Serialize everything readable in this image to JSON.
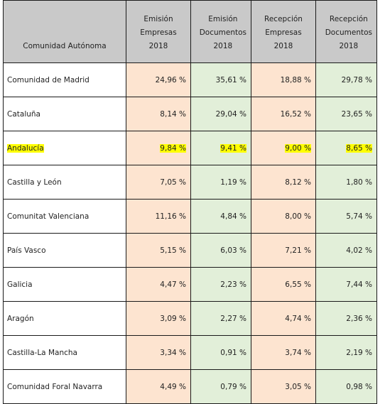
{
  "table": {
    "headers": [
      {
        "lines": [
          "Comunidad Autónoma"
        ]
      },
      {
        "lines": [
          "Emisión",
          "Empresas 2018"
        ]
      },
      {
        "lines": [
          "Emisión",
          "Documentos",
          "2018"
        ]
      },
      {
        "lines": [
          "Recepción",
          "Empresas 2018"
        ]
      },
      {
        "lines": [
          "Recepción",
          "Documentos",
          "2018"
        ]
      }
    ],
    "rows": [
      {
        "name": "Comunidad de Madrid",
        "values": [
          "24,96 %",
          "35,61 %",
          "18,88 %",
          "29,78 %"
        ],
        "highlighted": false
      },
      {
        "name": "Cataluña",
        "values": [
          "8,14 %",
          "29,04 %",
          "16,52 %",
          "23,65 %"
        ],
        "highlighted": false
      },
      {
        "name": "Andalucía",
        "values": [
          "9,84 %",
          "9,41 %",
          "9,00 %",
          "8,65 %"
        ],
        "highlighted": true
      },
      {
        "name": "Castilla y León",
        "values": [
          "7,05 %",
          "1,19 %",
          "8,12 %",
          "1,80 %"
        ],
        "highlighted": false
      },
      {
        "name": "Comunitat Valenciana",
        "values": [
          "11,16 %",
          "4,84 %",
          "8,00 %",
          "5,74 %"
        ],
        "highlighted": false
      },
      {
        "name": "País Vasco",
        "values": [
          "5,15 %",
          "6,03 %",
          "7,21 %",
          "4,02 %"
        ],
        "highlighted": false
      },
      {
        "name": "Galicia",
        "values": [
          "4,47 %",
          "2,23 %",
          "6,55 %",
          "7,44 %"
        ],
        "highlighted": false
      },
      {
        "name": "Aragón",
        "values": [
          "3,09 %",
          "2,27 %",
          "4,74 %",
          "2,36 %"
        ],
        "highlighted": false
      },
      {
        "name": "Castilla-La Mancha",
        "values": [
          "3,34 %",
          "0,91 %",
          "3,74 %",
          "2,19 %"
        ],
        "highlighted": false
      },
      {
        "name": "Comunidad Foral Navarra",
        "values": [
          "4,49 %",
          "0,79 %",
          "3,05 %",
          "0,98 %"
        ],
        "highlighted": false
      }
    ]
  },
  "colors": {
    "header_bg": "#c9c9c9",
    "emision_bg": "#fde4d0",
    "recepcion_docs_bg": "#e2efd9",
    "highlight": "#ffff00",
    "border": "#1a1a1a"
  }
}
